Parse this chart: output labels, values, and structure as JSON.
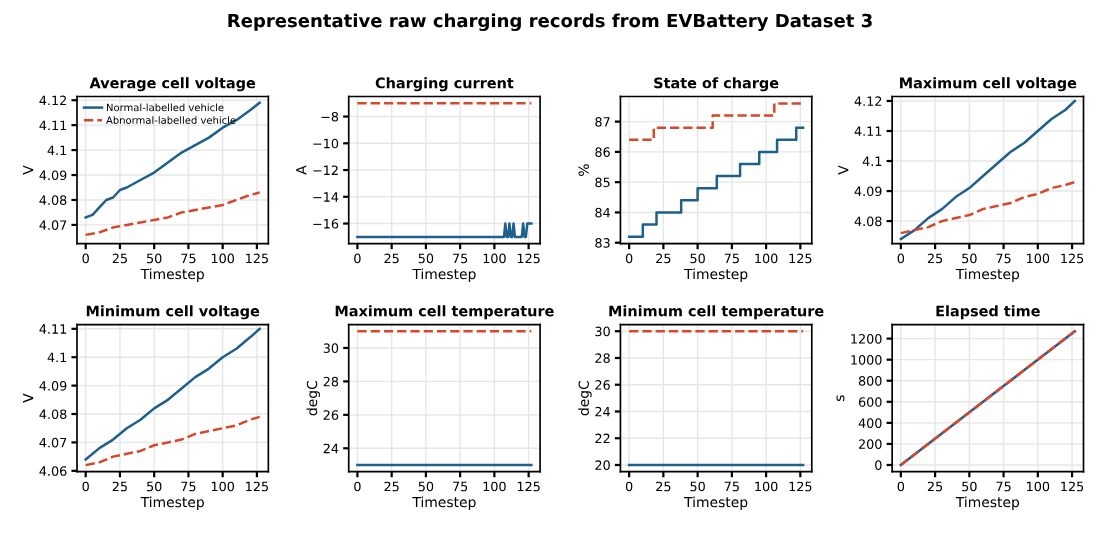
{
  "chart_data": [
    {
      "type": "line",
      "title": "Average cell voltage",
      "xlabel": "Timestep",
      "ylabel": "V",
      "annotations": [
        "Representative raw charging records from EVBattery Dataset 3"
      ],
      "xlim": [
        -6.35,
        133.35
      ],
      "xticks": [
        0,
        25,
        50,
        75,
        100,
        125
      ],
      "ylim": [
        4.0625,
        4.1215
      ],
      "yticks": [
        4.07,
        4.08,
        4.09,
        4.1,
        4.11,
        4.12
      ],
      "grid": true,
      "legend": "top left",
      "series": [
        {
          "name": "Normal-labelled vehicle",
          "color": "#1f5f8b",
          "line_style": "solid",
          "x": [
            0,
            5,
            10,
            15,
            20,
            25,
            30,
            40,
            50,
            60,
            70,
            80,
            90,
            100,
            110,
            120,
            127
          ],
          "values": [
            4.073,
            4.074,
            4.077,
            4.08,
            4.081,
            4.084,
            4.085,
            4.088,
            4.091,
            4.095,
            4.099,
            4.102,
            4.105,
            4.109,
            4.112,
            4.116,
            4.119
          ]
        },
        {
          "name": "Abnormal-labelled vehicle",
          "color": "#d9472b",
          "line_style": "dashed",
          "x": [
            0,
            10,
            20,
            30,
            40,
            50,
            60,
            70,
            80,
            90,
            100,
            110,
            120,
            127
          ],
          "values": [
            4.066,
            4.067,
            4.069,
            4.07,
            4.071,
            4.072,
            4.073,
            4.075,
            4.076,
            4.077,
            4.078,
            4.08,
            4.082,
            4.083
          ]
        }
      ]
    },
    {
      "type": "line",
      "title": "Charging current",
      "xlabel": "Timestep",
      "ylabel": "A",
      "xlim": [
        -6.35,
        133.35
      ],
      "xticks": [
        0,
        25,
        50,
        75,
        100,
        125
      ],
      "ylim": [
        -17.5,
        -6.5
      ],
      "yticks": [
        {
          "value": -16,
          "label": "−16"
        },
        {
          "value": -14,
          "label": "−14"
        },
        {
          "value": -12,
          "label": "−12"
        },
        {
          "value": -10,
          "label": "−10"
        },
        {
          "value": -8,
          "label": "−8"
        }
      ],
      "grid": true,
      "series": [
        {
          "color": "#1f5f8b",
          "line_style": "solid",
          "x": [
            0,
            107,
            108,
            109,
            110,
            111,
            112,
            113,
            114,
            115,
            116,
            120,
            121,
            122,
            123,
            124,
            127
          ],
          "values": [
            -17,
            -17,
            -16,
            -17,
            -17,
            -16,
            -17,
            -17,
            -16,
            -17,
            -17,
            -17,
            -16,
            -17,
            -17,
            -16,
            -16
          ]
        },
        {
          "color": "#d9472b",
          "line_style": "dashed",
          "x": [
            0,
            127
          ],
          "values": [
            -7,
            -7
          ]
        }
      ]
    },
    {
      "type": "step",
      "title": "State of charge",
      "xlabel": "Timestep",
      "ylabel": "%",
      "xlim": [
        -6.35,
        133.35
      ],
      "xticks": [
        0,
        25,
        50,
        75,
        100,
        125
      ],
      "ylim": [
        82.97,
        87.83
      ],
      "yticks": [
        83,
        84,
        85,
        86,
        87
      ],
      "grid": true,
      "series": [
        {
          "color": "#1f5f8b",
          "line_style": "solid",
          "x": [
            0,
            10,
            20,
            38,
            50,
            64,
            81,
            95,
            108,
            122,
            127
          ],
          "values": [
            83.2,
            83.6,
            84.0,
            84.4,
            84.8,
            85.2,
            85.6,
            86.0,
            86.4,
            86.8,
            86.8
          ]
        },
        {
          "color": "#d9472b",
          "line_style": "dashed",
          "x": [
            0,
            18,
            61,
            106,
            127
          ],
          "values": [
            86.4,
            86.8,
            87.2,
            87.6,
            87.6
          ]
        }
      ]
    },
    {
      "type": "line",
      "title": "Maximum cell voltage",
      "xlabel": "Timestep",
      "ylabel": "V",
      "xlim": [
        -6.35,
        133.35
      ],
      "xticks": [
        0,
        25,
        50,
        75,
        100,
        125
      ],
      "ylim": [
        4.0725,
        4.1215
      ],
      "yticks": [
        4.08,
        4.09,
        4.1,
        4.11,
        4.12
      ],
      "grid": true,
      "series": [
        {
          "color": "#1f5f8b",
          "line_style": "solid",
          "x": [
            0,
            10,
            20,
            30,
            40,
            50,
            60,
            70,
            80,
            90,
            100,
            110,
            120,
            127
          ],
          "values": [
            4.074,
            4.077,
            4.081,
            4.084,
            4.088,
            4.091,
            4.095,
            4.099,
            4.103,
            4.106,
            4.11,
            4.114,
            4.117,
            4.12
          ]
        },
        {
          "color": "#d9472b",
          "line_style": "dashed",
          "x": [
            0,
            10,
            20,
            30,
            40,
            50,
            60,
            70,
            80,
            90,
            100,
            110,
            120,
            127
          ],
          "values": [
            4.076,
            4.077,
            4.078,
            4.08,
            4.081,
            4.082,
            4.084,
            4.085,
            4.086,
            4.088,
            4.089,
            4.091,
            4.092,
            4.093
          ]
        }
      ]
    },
    {
      "type": "line",
      "title": "Minimum cell voltage",
      "xlabel": "Timestep",
      "ylabel": "V",
      "xlim": [
        -6.35,
        133.35
      ],
      "xticks": [
        0,
        25,
        50,
        75,
        100,
        125
      ],
      "ylim": [
        4.0597,
        4.1115
      ],
      "yticks": [
        4.06,
        4.07,
        4.08,
        4.09,
        4.1,
        4.11
      ],
      "grid": true,
      "series": [
        {
          "color": "#1f5f8b",
          "line_style": "solid",
          "x": [
            0,
            10,
            20,
            30,
            40,
            50,
            60,
            70,
            80,
            90,
            100,
            110,
            120,
            127
          ],
          "values": [
            4.064,
            4.068,
            4.071,
            4.075,
            4.078,
            4.082,
            4.085,
            4.089,
            4.093,
            4.096,
            4.1,
            4.103,
            4.107,
            4.11
          ]
        },
        {
          "color": "#d9472b",
          "line_style": "dashed",
          "x": [
            0,
            10,
            20,
            30,
            40,
            50,
            60,
            70,
            80,
            90,
            100,
            110,
            120,
            127
          ],
          "values": [
            4.062,
            4.063,
            4.065,
            4.066,
            4.067,
            4.069,
            4.07,
            4.071,
            4.073,
            4.074,
            4.075,
            4.076,
            4.078,
            4.079
          ]
        }
      ]
    },
    {
      "type": "line",
      "title": "Maximum cell temperature",
      "xlabel": "Timestep",
      "ylabel": "degC",
      "xlim": [
        -6.35,
        133.35
      ],
      "xticks": [
        0,
        25,
        50,
        75,
        100,
        125
      ],
      "ylim": [
        22.6,
        31.4
      ],
      "yticks": [
        24,
        26,
        28,
        30
      ],
      "grid": true,
      "series": [
        {
          "color": "#1f5f8b",
          "line_style": "solid",
          "x": [
            0,
            127
          ],
          "values": [
            23,
            23
          ]
        },
        {
          "color": "#d9472b",
          "line_style": "dashed",
          "x": [
            0,
            127
          ],
          "values": [
            31,
            31
          ]
        }
      ]
    },
    {
      "type": "line",
      "title": "Minimum cell temperature",
      "xlabel": "Timestep",
      "ylabel": "degC",
      "xlim": [
        -6.35,
        133.35
      ],
      "xticks": [
        0,
        25,
        50,
        75,
        100,
        125
      ],
      "ylim": [
        19.5,
        30.5
      ],
      "yticks": [
        20,
        22,
        24,
        26,
        28,
        30
      ],
      "grid": true,
      "series": [
        {
          "color": "#1f5f8b",
          "line_style": "solid",
          "x": [
            0,
            127
          ],
          "values": [
            20,
            20
          ]
        },
        {
          "color": "#d9472b",
          "line_style": "dashed",
          "x": [
            0,
            127
          ],
          "values": [
            30,
            30
          ]
        }
      ]
    },
    {
      "type": "line",
      "title": "Elapsed time",
      "xlabel": "Timestep",
      "ylabel": "s",
      "xlim": [
        -6.35,
        133.35
      ],
      "xticks": [
        0,
        25,
        50,
        75,
        100,
        125
      ],
      "ylim": [
        -63.5,
        1333.5
      ],
      "yticks": [
        0,
        200,
        400,
        600,
        800,
        1000,
        1200
      ],
      "grid": true,
      "series": [
        {
          "color": "#1f5f8b",
          "line_style": "solid",
          "x": [
            0,
            127
          ],
          "values": [
            0,
            1270
          ]
        },
        {
          "color": "#d9472b",
          "line_style": "dashed",
          "x": [
            0,
            127
          ],
          "values": [
            0,
            1270
          ]
        }
      ]
    }
  ]
}
